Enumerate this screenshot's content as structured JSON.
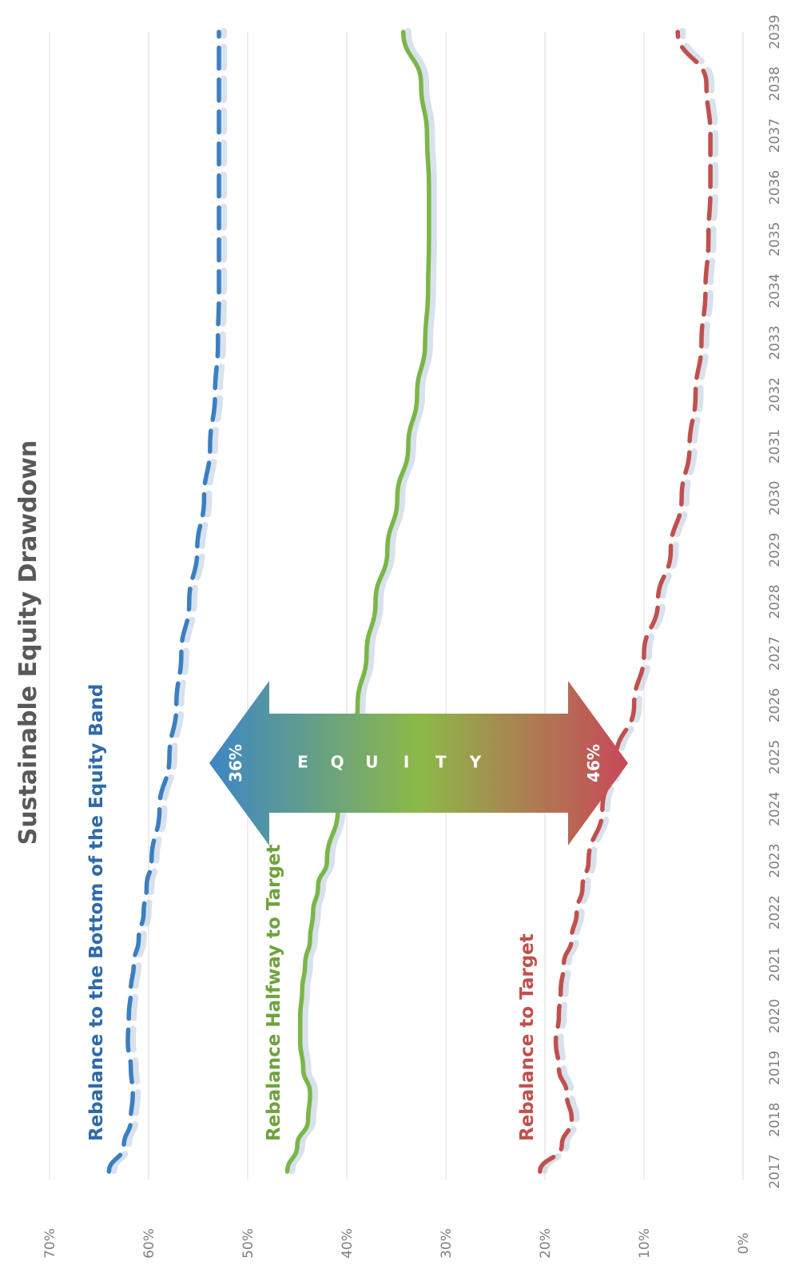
{
  "chart_data": {
    "type": "line",
    "title": "Sustainable Equity Drawdown",
    "x": [
      2017,
      2018,
      2019,
      2020,
      2021,
      2022,
      2023,
      2024,
      2025,
      2026,
      2027,
      2028,
      2029,
      2030,
      2031,
      2032,
      2033,
      2034,
      2035,
      2036,
      2037,
      2038,
      2039
    ],
    "ylim": [
      0,
      70
    ],
    "yticks": [
      "0%",
      "10%",
      "20%",
      "30%",
      "40%",
      "50%",
      "60%",
      "70%"
    ],
    "grid": true,
    "series": [
      {
        "name": "Rebalance to the Bottom of the Equity Band",
        "style": "dashed",
        "color": "#3a7fc1",
        "values": [
          [
            2017,
            64.0
          ],
          [
            2017.5,
            62.5
          ],
          [
            2018,
            61.8
          ],
          [
            2018.5,
            61.6
          ],
          [
            2019,
            61.8
          ],
          [
            2019.5,
            62.1
          ],
          [
            2020,
            62.0
          ],
          [
            2020.5,
            61.8
          ],
          [
            2021,
            61.5
          ],
          [
            2021.5,
            61.0
          ],
          [
            2022,
            60.5
          ],
          [
            2022.5,
            60.2
          ],
          [
            2023,
            59.7
          ],
          [
            2024,
            58.9
          ],
          [
            2025,
            57.9
          ],
          [
            2026,
            57.2
          ],
          [
            2027,
            56.7
          ],
          [
            2028,
            55.9
          ],
          [
            2029,
            55.1
          ],
          [
            2030,
            54.4
          ],
          [
            2031,
            53.8
          ],
          [
            2032,
            53.3
          ],
          [
            2033,
            53.0
          ],
          [
            2034,
            52.9
          ],
          [
            2035,
            52.9
          ],
          [
            2036,
            52.9
          ],
          [
            2037,
            52.9
          ],
          [
            2038,
            52.9
          ],
          [
            2039,
            52.9
          ]
        ]
      },
      {
        "name": "Rebalance Halfway to Target",
        "style": "solid",
        "color": "#7ab648",
        "values": [
          [
            2017,
            46.0
          ],
          [
            2017.5,
            45.0
          ],
          [
            2018,
            43.9
          ],
          [
            2018.5,
            43.7
          ],
          [
            2019,
            44.4
          ],
          [
            2019.5,
            44.7
          ],
          [
            2020,
            44.7
          ],
          [
            2020.5,
            44.5
          ],
          [
            2021,
            44.2
          ],
          [
            2021.5,
            43.7
          ],
          [
            2022,
            43.4
          ],
          [
            2022.5,
            42.9
          ],
          [
            2023,
            42.0
          ],
          [
            2024,
            40.9
          ],
          [
            2025,
            39.8
          ],
          [
            2026,
            38.9
          ],
          [
            2027,
            38.0
          ],
          [
            2028,
            37.1
          ],
          [
            2029,
            35.9
          ],
          [
            2030,
            34.9
          ],
          [
            2031,
            33.8
          ],
          [
            2032,
            32.9
          ],
          [
            2033,
            32.1
          ],
          [
            2034,
            31.8
          ],
          [
            2035,
            31.7
          ],
          [
            2036,
            31.7
          ],
          [
            2037,
            31.9
          ],
          [
            2038,
            32.5
          ],
          [
            2039,
            34.3
          ]
        ]
      },
      {
        "name": "Rebalance to Target",
        "style": "dashed",
        "color": "#c0504d",
        "values": [
          [
            2017,
            20.5
          ],
          [
            2017.5,
            18.3
          ],
          [
            2018,
            17.3
          ],
          [
            2018.5,
            17.8
          ],
          [
            2019,
            18.6
          ],
          [
            2019.5,
            18.9
          ],
          [
            2020,
            18.6
          ],
          [
            2020.5,
            18.4
          ],
          [
            2021,
            18.1
          ],
          [
            2021.5,
            17.3
          ],
          [
            2022,
            16.8
          ],
          [
            2022.5,
            16.2
          ],
          [
            2023,
            15.6
          ],
          [
            2024,
            14.2
          ],
          [
            2025,
            12.8
          ],
          [
            2026,
            11.0
          ],
          [
            2027,
            10.0
          ],
          [
            2028,
            8.6
          ],
          [
            2029,
            7.3
          ],
          [
            2030,
            6.2
          ],
          [
            2031,
            5.4
          ],
          [
            2032,
            4.8
          ],
          [
            2033,
            4.2
          ],
          [
            2034,
            3.8
          ],
          [
            2035,
            3.5
          ],
          [
            2036,
            3.3
          ],
          [
            2037,
            3.3
          ],
          [
            2038,
            3.7
          ],
          [
            2039,
            6.6
          ]
        ]
      }
    ],
    "annotations": [
      {
        "text": "Rebalance to the Bottom of the Equity Band",
        "color": "#2e6aa8"
      },
      {
        "text": "Rebalance Halfway to Target",
        "color": "#6ea33d"
      },
      {
        "text": "Rebalance to Target",
        "color": "#c0504d"
      }
    ],
    "arrow": {
      "left_label": "36%",
      "right_label": "46%",
      "letters": [
        "E",
        "Q",
        "U",
        "I",
        "T",
        "Y"
      ]
    }
  }
}
